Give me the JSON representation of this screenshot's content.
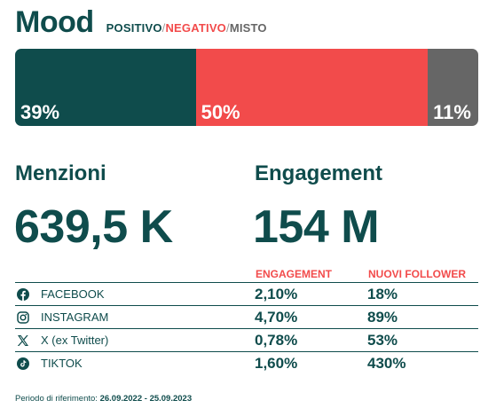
{
  "title": "Mood",
  "legend": {
    "positivo": "POSITIVO",
    "negativo": "NEGATIVO",
    "misto": "MISTO",
    "separator": "/"
  },
  "mood_bar": [
    {
      "name": "positivo",
      "value": 39,
      "label": "39%",
      "color": "#0f4c4c"
    },
    {
      "name": "negativo",
      "value": 50,
      "label": "50%",
      "color": "#f24b4b"
    },
    {
      "name": "misto",
      "value": 11,
      "label": "11%",
      "color": "#666666"
    }
  ],
  "metrics": {
    "menzioni_label": "Menzioni",
    "menzioni_value": "639,5 K",
    "engagement_label": "Engagement",
    "engagement_value": "154 M"
  },
  "table": {
    "headers": {
      "engagement": "ENGAGEMENT",
      "followers": "NUOVI FOLLOWER"
    },
    "rows": [
      {
        "icon": "facebook-icon",
        "name": "FACEBOOK",
        "engagement": "2,10%",
        "followers": "18%"
      },
      {
        "icon": "instagram-icon",
        "name": "INSTAGRAM",
        "engagement": "4,70%",
        "followers": "89%"
      },
      {
        "icon": "x-twitter-icon",
        "name": "X (ex Twitter)",
        "engagement": "0,78%",
        "followers": "53%"
      },
      {
        "icon": "tiktok-icon",
        "name": "TIKTOK",
        "engagement": "1,60%",
        "followers": "430%"
      }
    ]
  },
  "footer": {
    "label": "Periodo di riferimento:",
    "period": "26.09.2022 - 25.09.2023"
  },
  "colors": {
    "primary": "#0f4c4c",
    "accent": "#f24b4b",
    "neutral": "#666666"
  }
}
